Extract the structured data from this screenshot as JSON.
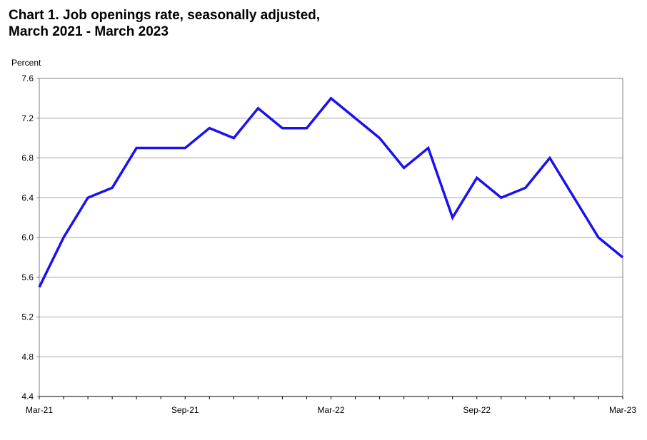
{
  "title_line1": "Chart 1. Job openings rate, seasonally adjusted,",
  "title_line2": "March 2021 - March 2023",
  "chart_data": {
    "type": "line",
    "ylabel": "Percent",
    "ylim": [
      4.4,
      7.6
    ],
    "yticks": [
      "4.4",
      "4.8",
      "5.2",
      "5.6",
      "6.0",
      "6.4",
      "6.8",
      "7.2",
      "7.6"
    ],
    "ytick_values": [
      4.4,
      4.8,
      5.2,
      5.6,
      6.0,
      6.4,
      6.8,
      7.2,
      7.6
    ],
    "xtick_labels": [
      "Mar-21",
      "Sep-21",
      "Mar-22",
      "Sep-22",
      "Mar-23"
    ],
    "xtick_positions": [
      0,
      6,
      12,
      18,
      24
    ],
    "x": [
      "Mar-21",
      "Apr-21",
      "May-21",
      "Jun-21",
      "Jul-21",
      "Aug-21",
      "Sep-21",
      "Oct-21",
      "Nov-21",
      "Dec-21",
      "Jan-22",
      "Feb-22",
      "Mar-22",
      "Apr-22",
      "May-22",
      "Jun-22",
      "Jul-22",
      "Aug-22",
      "Sep-22",
      "Oct-22",
      "Nov-22",
      "Dec-22",
      "Jan-23",
      "Feb-23",
      "Mar-23"
    ],
    "series": [
      {
        "values": [
          5.5,
          6.0,
          6.4,
          6.5,
          6.9,
          6.9,
          6.9,
          7.1,
          7.0,
          7.3,
          7.1,
          7.1,
          7.4,
          7.2,
          7.0,
          6.7,
          6.9,
          6.2,
          6.6,
          6.4,
          6.5,
          6.8,
          6.4,
          6.0,
          5.8
        ],
        "color": "#1a12ee"
      }
    ],
    "grid": true,
    "grid_axis": "y"
  }
}
